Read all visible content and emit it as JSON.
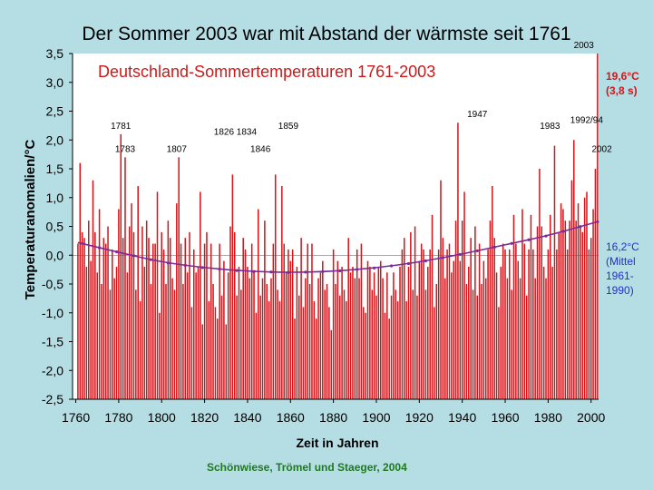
{
  "page": {
    "title": "Der Sommer 2003 war mit Abstand der wärmste seit 1761"
  },
  "notes": {
    "record_value": "19,6°C",
    "record_sd": "(3,8 s)",
    "mean_lines": [
      "16,2°C",
      "(Mittel",
      "1961-",
      "1990)"
    ]
  },
  "credit": "Schönwiese, Trömel und Staeger, 2004",
  "colors": {
    "bar": "#d2161b",
    "trend": "#7a2a9a",
    "background": "#b5dde4",
    "plot_bg": "#ffffff"
  },
  "chart_data": {
    "type": "bar",
    "title": "Deutschland-Sommertemperaturen 1761-2003",
    "xlabel": "Zeit in Jahren",
    "ylabel": "Temperaturanomalien/°C",
    "xlim": [
      1761,
      2003
    ],
    "ylim": [
      -2.5,
      3.5
    ],
    "xticks": [
      "1760",
      "1780",
      "1800",
      "1820",
      "1840",
      "1860",
      "1880",
      "1900",
      "1920",
      "1940",
      "1960",
      "1980",
      "2000"
    ],
    "yticks": [
      "3,5",
      "3,0",
      "2,5",
      "2,0",
      "1,5",
      "1,0",
      "0,5",
      "0,0",
      "-0,5",
      "-1,0",
      "-1,5",
      "-2,0",
      "-2,5"
    ],
    "ytick_values": [
      3.5,
      3.0,
      2.5,
      2.0,
      1.5,
      1.0,
      0.5,
      0.0,
      -0.5,
      -1.0,
      -1.5,
      -2.0,
      -2.5
    ],
    "baseline": -2.5,
    "x_start": 1761,
    "anomalies": [
      0.2,
      1.6,
      0.4,
      0.3,
      -0.2,
      0.6,
      -0.1,
      1.3,
      0.4,
      -0.3,
      0.8,
      -0.5,
      0.3,
      0.2,
      0.5,
      -0.6,
      0.1,
      -0.4,
      -0.2,
      0.8,
      2.1,
      0.3,
      1.7,
      -0.3,
      0.5,
      0.9,
      0.4,
      -0.6,
      1.2,
      -0.8,
      0.5,
      -0.2,
      0.6,
      0.3,
      -0.5,
      0.2,
      0.2,
      1.1,
      -1.0,
      0.4,
      0.1,
      -0.5,
      0.6,
      0.3,
      -0.4,
      -0.6,
      0.9,
      1.7,
      0.2,
      -0.5,
      0.3,
      -0.3,
      0.4,
      -0.9,
      0.1,
      -0.3,
      -0.2,
      1.1,
      -1.2,
      0.2,
      0.4,
      -0.8,
      0.2,
      -0.5,
      -0.9,
      -1.1,
      0.2,
      -0.7,
      -0.1,
      -1.2,
      -0.3,
      0.5,
      1.4,
      0.4,
      -0.7,
      -0.2,
      -0.6,
      0.3,
      0.1,
      -0.2,
      -0.4,
      0.2,
      -0.3,
      -1.0,
      0.8,
      -0.7,
      -0.4,
      0.6,
      -0.5,
      -0.8,
      -0.4,
      0.2,
      1.4,
      -0.6,
      -0.8,
      1.2,
      0.2,
      -0.3,
      0.1,
      -0.1,
      0.1,
      -1.1,
      -0.2,
      -0.7,
      0.3,
      -0.9,
      -0.4,
      0.2,
      -0.5,
      0.2,
      -0.8,
      -1.1,
      -0.4,
      -0.3,
      -0.1,
      -0.6,
      -0.5,
      -0.9,
      -1.3,
      0.1,
      -0.5,
      -0.1,
      -0.7,
      -0.2,
      -0.6,
      -0.8,
      0.3,
      -0.3,
      -0.2,
      -0.4,
      0.1,
      -0.4,
      0.2,
      -0.9,
      -1.0,
      -0.1,
      -0.2,
      -0.6,
      -0.3,
      -0.7,
      -0.2,
      -0.1,
      -0.4,
      -1.0,
      -0.3,
      -1.1,
      -0.7,
      -0.3,
      -0.6,
      -0.8,
      -0.2,
      0.1,
      0.3,
      -0.8,
      -0.2,
      0.4,
      -0.6,
      0.5,
      -0.7,
      -0.1,
      0.2,
      0.1,
      -0.6,
      -0.2,
      0.1,
      0.7,
      -0.9,
      -0.5,
      0.1,
      1.3,
      0.3,
      -0.4,
      0.1,
      0.2,
      -0.3,
      -0.1,
      0.6,
      2.3,
      -0.1,
      0.6,
      1.1,
      -0.5,
      -0.2,
      0.3,
      -0.6,
      0.5,
      -0.7,
      0.2,
      -0.5,
      -0.1,
      -0.4,
      0.1,
      0.6,
      1.2,
      0.3,
      -0.3,
      -0.9,
      -0.2,
      0.2,
      0.1,
      -0.4,
      0.1,
      -0.6,
      0.7,
      0.2,
      -0.1,
      -0.4,
      0.8,
      0.2,
      -0.7,
      0.1,
      0.7,
      0.1,
      -0.4,
      0.5,
      1.5,
      0.5,
      -0.2,
      -0.4,
      0.1,
      0.7,
      -0.2,
      1.9,
      0.1,
      0.4,
      0.9,
      0.8,
      0.6,
      0.1,
      0.6,
      1.3,
      2.0,
      0.6,
      0.9,
      0.5,
      0.4,
      1.0,
      1.1,
      0.1,
      0.3,
      0.8,
      1.5,
      3.5
    ],
    "trend": {
      "name": "Trend",
      "x": [
        1761,
        1780,
        1800,
        1820,
        1840,
        1860,
        1880,
        1900,
        1920,
        1940,
        1960,
        1980,
        2003
      ],
      "y": [
        0.22,
        0.05,
        -0.12,
        -0.22,
        -0.28,
        -0.3,
        -0.28,
        -0.22,
        -0.12,
        0.02,
        0.18,
        0.34,
        0.58
      ]
    },
    "annotations": [
      {
        "label": "1781",
        "year": 1781,
        "value": 2.1
      },
      {
        "label": "1783",
        "year": 1783,
        "value": 1.7
      },
      {
        "label": "1807",
        "year": 1807,
        "value": 1.7
      },
      {
        "label": "1826 1834",
        "year": 1826,
        "value": 2.0
      },
      {
        "label": "1846",
        "year": 1846,
        "value": 1.7
      },
      {
        "label": "1859",
        "year": 1859,
        "value": 2.1
      },
      {
        "label": "1947",
        "year": 1947,
        "value": 2.3
      },
      {
        "label": "1983",
        "year": 1983,
        "value": 2.1
      },
      {
        "label": "1992/94",
        "year": 1992,
        "value": 2.2
      },
      {
        "label": "2002",
        "year": 2002,
        "value": 1.7
      },
      {
        "label": "2003",
        "year": 2003,
        "value": 3.5
      }
    ]
  }
}
